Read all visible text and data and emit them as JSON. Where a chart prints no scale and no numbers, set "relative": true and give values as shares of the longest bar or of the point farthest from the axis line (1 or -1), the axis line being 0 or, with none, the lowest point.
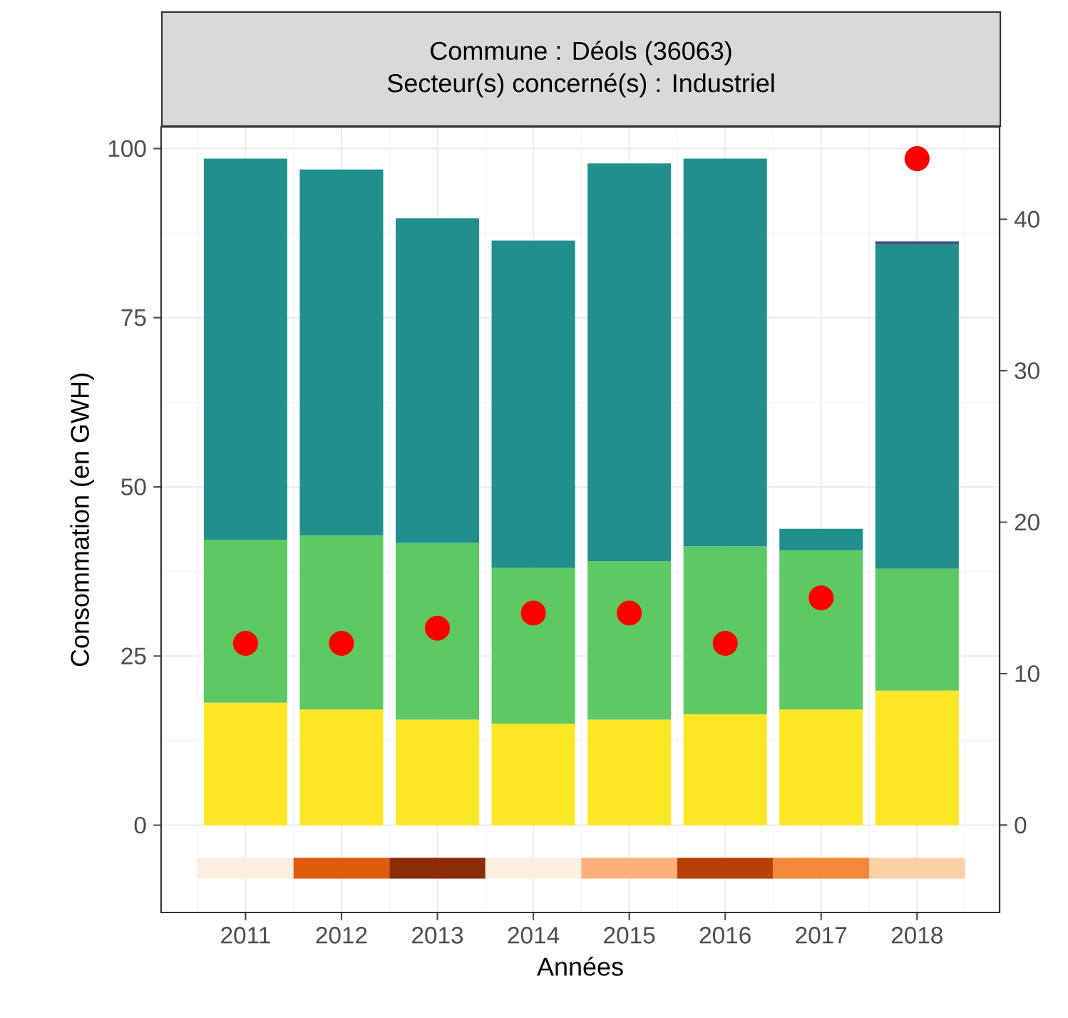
{
  "chart_data": [
    {
      "type": "bar",
      "title": "Commune : Déols (36063)",
      "subtitle": "Secteur(s) concerné(s) : Industriel",
      "xlabel": "Années",
      "ylabel": "Consommation (en GWH)",
      "categories": [
        "2011",
        "2012",
        "2013",
        "2014",
        "2015",
        "2016",
        "2017",
        "2018"
      ],
      "stacked": true,
      "ylim": [
        -12.9,
        103.2
      ],
      "yticks": [
        0,
        25,
        50,
        75,
        100
      ],
      "y2lim": [
        -5.77,
        46.1
      ],
      "y2ticks": [
        0,
        10,
        20,
        30,
        40
      ],
      "grid": true,
      "series": [
        {
          "color": "#fde725",
          "values": [
            18.1,
            17.1,
            15.6,
            15.0,
            15.6,
            16.4,
            17.1,
            19.9
          ]
        },
        {
          "color": "#5ec962",
          "values": [
            24.1,
            25.7,
            26.1,
            23.0,
            23.4,
            24.8,
            23.5,
            18.0
          ]
        },
        {
          "color": "#21908d",
          "values": [
            56.3,
            54.1,
            48.0,
            48.4,
            58.8,
            57.3,
            3.2,
            47.9
          ]
        },
        {
          "color": "#3b528b",
          "values": [
            null,
            null,
            null,
            null,
            null,
            null,
            null,
            0.5
          ]
        },
        {
          "type": "scatter",
          "axis": "y2",
          "color": "#ff0000",
          "values": [
            12.0,
            12.0,
            13.0,
            14.0,
            14.0,
            12.0,
            15.0,
            44.0
          ]
        }
      ]
    },
    {
      "type": "bar",
      "relative": true,
      "tick_labels": false,
      "categories": [
        "2011",
        "2012",
        "2013",
        "2014",
        "2015",
        "2016",
        "2017",
        "2018"
      ],
      "values": [
        1,
        1,
        1,
        1,
        1,
        1,
        1,
        1
      ],
      "colors": [
        "#fdeee0",
        "#e05a0c",
        "#8a2c05",
        "#fdeee0",
        "#fdb07a",
        "#b84008",
        "#f4883a",
        "#fdcfa4"
      ]
    }
  ]
}
